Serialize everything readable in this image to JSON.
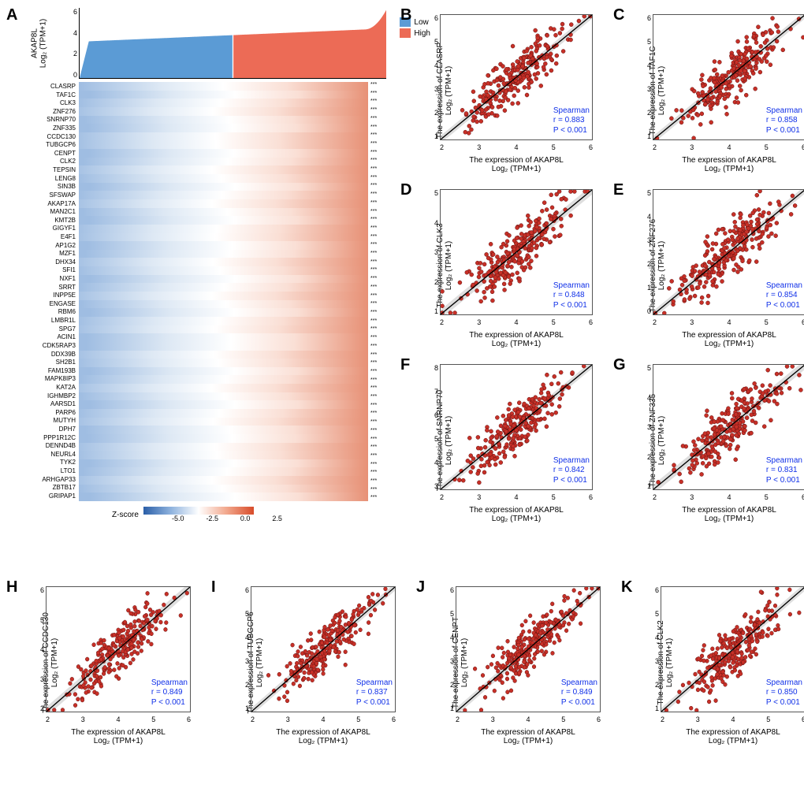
{
  "palette": {
    "low_color": "#5b9bd5",
    "high_color": "#ec6b56",
    "point_fill": "#c73027",
    "point_stroke": "#601010",
    "fit_line": "#000000",
    "ci_fill": "#bdbdbd",
    "stats_color": "#1030e8",
    "heatmap_low": "#2b5fa8",
    "heatmap_high": "#d84c2a"
  },
  "panelA": {
    "label": "A",
    "top_ylabel_line1": "AKAP8L",
    "top_ylabel_line2": "Log₂ (TPM+1)",
    "top_yticks": [
      0,
      2,
      4,
      6
    ],
    "legend": {
      "low": "Low",
      "high": "High"
    },
    "genes": [
      "CLASRP",
      "TAF1C",
      "CLK3",
      "ZNF276",
      "SNRNP70",
      "ZNF335",
      "CCDC130",
      "TUBGCP6",
      "CENPT",
      "CLK2",
      "TEPSIN",
      "LENG8",
      "SIN3B",
      "SFSWAP",
      "AKAP17A",
      "MAN2C1",
      "KMT2B",
      "GIGYF1",
      "E4F1",
      "AP1G2",
      "MZF1",
      "DHX34",
      "SFI1",
      "NXF1",
      "SRRT",
      "INPP5E",
      "ENGASE",
      "RBM6",
      "LMBR1L",
      "SPG7",
      "ACIN1",
      "CDK5RAP3",
      "DDX39B",
      "SH2B1",
      "FAM193B",
      "MAPK8IP3",
      "KAT2A",
      "IGHMBP2",
      "AARSD1",
      "PARP6",
      "MUTYH",
      "DPH7",
      "PPP1R12C",
      "DENND4B",
      "NEURL4",
      "TYK2",
      "LTO1",
      "ARHGAP33",
      "ZBTB17",
      "GRIPAP1"
    ],
    "sig_marker": "***",
    "zscore_label": "Z-score",
    "zscore_ticks": [
      "-5.0",
      "-2.5",
      "0.0",
      "2.5"
    ]
  },
  "scatters": {
    "common_xlabel_line1": "The expression of AKAP8L",
    "common_xlabel_line2": "Log₂ (TPM+1)",
    "common_xticks": [
      2,
      3,
      4,
      5,
      6
    ],
    "spearman_label": "Spearman",
    "p_label": "P < 0.001",
    "panels": [
      {
        "id": "B",
        "gene": "CLASRP",
        "r": "0.883",
        "yticks": [
          1,
          2,
          3,
          4,
          5,
          6
        ],
        "ylabel": "The expression of CLASRP"
      },
      {
        "id": "C",
        "gene": "TAF1C",
        "r": "0.858",
        "yticks": [
          1,
          2,
          3,
          4,
          5,
          6
        ],
        "ylabel": "The expression of TAF1C"
      },
      {
        "id": "D",
        "gene": "CLK3",
        "r": "0.848",
        "yticks": [
          1,
          2,
          3,
          4,
          5
        ],
        "ylabel": "The expression of CLK3"
      },
      {
        "id": "E",
        "gene": "ZNF276",
        "r": "0.854",
        "yticks": [
          0,
          1,
          2,
          3,
          4,
          5
        ],
        "ylabel": "The expression of ZNF276"
      },
      {
        "id": "F",
        "gene": "SNRNP70",
        "r": "0.842",
        "yticks": [
          3,
          4,
          5,
          6,
          7,
          8
        ],
        "ylabel": "The expression of SNRNP70"
      },
      {
        "id": "G",
        "gene": "ZNF335",
        "r": "0.831",
        "yticks": [
          1,
          2,
          3,
          4,
          5
        ],
        "ylabel": "The expression of ZNF335"
      },
      {
        "id": "H",
        "gene": "CCDC130",
        "r": "0.849",
        "yticks": [
          2,
          3,
          4,
          5,
          6
        ],
        "ylabel": "The expression of CCDC130"
      },
      {
        "id": "I",
        "gene": "TUBGCP6",
        "r": "0.837",
        "yticks": [
          1,
          2,
          3,
          4,
          5,
          6
        ],
        "ylabel": "The expression of TUBGCP6"
      },
      {
        "id": "J",
        "gene": "CENPT",
        "r": "0.849",
        "yticks": [
          1,
          2,
          3,
          4,
          5,
          6
        ],
        "ylabel": "The expression of CENPT"
      },
      {
        "id": "K",
        "gene": "CLK2",
        "r": "0.850",
        "yticks": [
          1,
          2,
          3,
          4,
          5,
          6
        ],
        "ylabel": "The expression of CLK2"
      }
    ],
    "n_points": 260,
    "noise_sd": 0.1,
    "x_range": [
      1.5,
      6.2
    ]
  },
  "layout": {
    "figure_w": 1020,
    "figure_h": 1000,
    "point_radius": 2.6
  }
}
